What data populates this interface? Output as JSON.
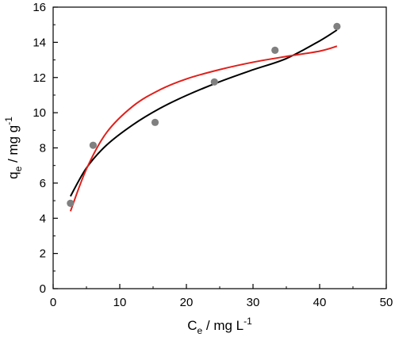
{
  "chart_data": {
    "type": "scatter",
    "xlabel": {
      "main": "C",
      "sub": "e",
      "rest": " / mg L",
      "sup": "-1"
    },
    "ylabel": {
      "main": "q",
      "sub": "e",
      "rest": " / mg g",
      "sup": "-1"
    },
    "xlim": [
      0,
      50
    ],
    "ylim": [
      0,
      16
    ],
    "xticks": [
      "0",
      "10",
      "20",
      "30",
      "40",
      "50"
    ],
    "yticks": [
      "0",
      "2",
      "4",
      "6",
      "8",
      "10",
      "12",
      "14",
      "16"
    ],
    "grid": false,
    "legend": "none",
    "series": [
      {
        "kind": "points",
        "color": "#808080",
        "x": [
          2.6,
          6.0,
          15.3,
          24.2,
          33.3,
          42.6
        ],
        "y": [
          4.85,
          8.15,
          9.45,
          11.75,
          13.55,
          14.9
        ]
      },
      {
        "kind": "curve",
        "color": "#000000",
        "x": [
          2.6,
          5,
          8,
          12,
          16,
          20,
          25,
          30,
          35,
          40,
          42.6
        ],
        "y": [
          5.25,
          6.86,
          8.15,
          9.32,
          10.24,
          10.98,
          11.76,
          12.44,
          13.08,
          14.08,
          14.7
        ]
      },
      {
        "kind": "curve",
        "color": "#e0201b",
        "x": [
          2.6,
          5,
          8,
          12,
          16,
          20,
          25,
          30,
          35,
          40,
          42.6
        ],
        "y": [
          4.4,
          6.8,
          8.86,
          10.38,
          11.3,
          11.92,
          12.45,
          12.87,
          13.2,
          13.5,
          13.78
        ]
      }
    ]
  }
}
